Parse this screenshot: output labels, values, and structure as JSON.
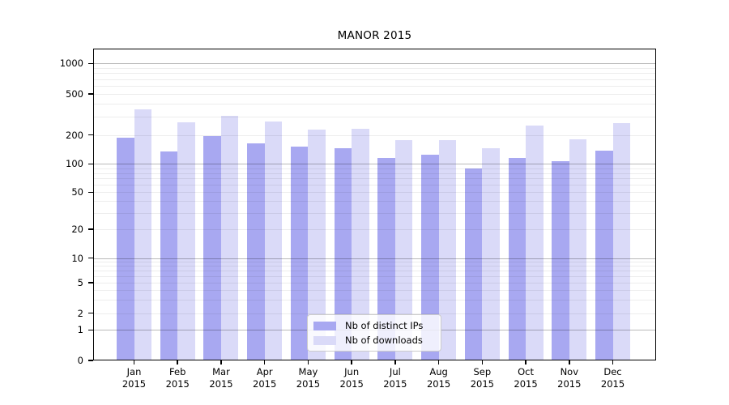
{
  "title": "MANOR 2015",
  "chart_data": {
    "type": "bar",
    "title": "MANOR 2015",
    "categories": [
      "Jan",
      "Feb",
      "Mar",
      "Apr",
      "May",
      "Jun",
      "Jul",
      "Aug",
      "Sep",
      "Oct",
      "Nov",
      "Dec"
    ],
    "category_year": "2015",
    "series": [
      {
        "name": "Nb of distinct IPs",
        "color": "#a8a8f1",
        "values": [
          188,
          135,
          195,
          165,
          152,
          145,
          115,
          125,
          90,
          116,
          107,
          137
        ]
      },
      {
        "name": "Nb of downloads",
        "color": "#dadaf8",
        "values": [
          355,
          268,
          305,
          270,
          226,
          230,
          178,
          178,
          147,
          248,
          180,
          260
        ]
      }
    ],
    "yscale": "symlog",
    "y_ticks": [
      0,
      1,
      2,
      5,
      10,
      20,
      50,
      100,
      200,
      500,
      1000
    ],
    "ylim": [
      0,
      1400
    ],
    "xlabel": "",
    "ylabel": "",
    "grid": "horizontal",
    "legend_position": "lower center"
  },
  "legend": {
    "items": [
      {
        "label": "Nb of distinct IPs",
        "color": "#a8a8f1"
      },
      {
        "label": "Nb of downloads",
        "color": "#dadaf8"
      }
    ]
  }
}
